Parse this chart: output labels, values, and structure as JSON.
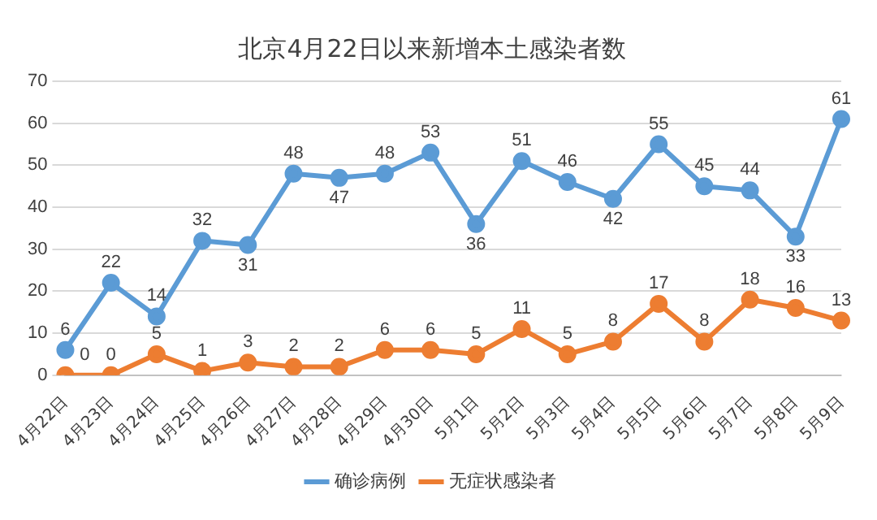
{
  "chart_data": {
    "type": "line",
    "title": "北京4月22日以来新增本土感染者数",
    "categories": [
      "4月22日",
      "4月23日",
      "4月24日",
      "4月25日",
      "4月26日",
      "4月27日",
      "4月28日",
      "4月29日",
      "4月30日",
      "5月1日",
      "5月2日",
      "5月3日",
      "5月4日",
      "5月5日",
      "5月6日",
      "5月7日",
      "5月8日",
      "5月9日"
    ],
    "series": [
      {
        "name": "确诊病例",
        "color": "#5b9bd5",
        "values": [
          6,
          22,
          14,
          32,
          31,
          48,
          47,
          48,
          53,
          36,
          51,
          46,
          42,
          55,
          45,
          44,
          33,
          61
        ]
      },
      {
        "name": "无症状感染者",
        "color": "#ed7d31",
        "values": [
          0,
          0,
          5,
          1,
          3,
          2,
          2,
          6,
          6,
          5,
          11,
          5,
          8,
          17,
          8,
          18,
          16,
          13
        ]
      }
    ],
    "ylim": [
      0,
      70
    ],
    "yticks": [
      0,
      10,
      20,
      30,
      40,
      50,
      60,
      70
    ],
    "grid": "y",
    "legend": "bottom",
    "marker": "circle",
    "line_style": "solid",
    "data_labels": true
  }
}
